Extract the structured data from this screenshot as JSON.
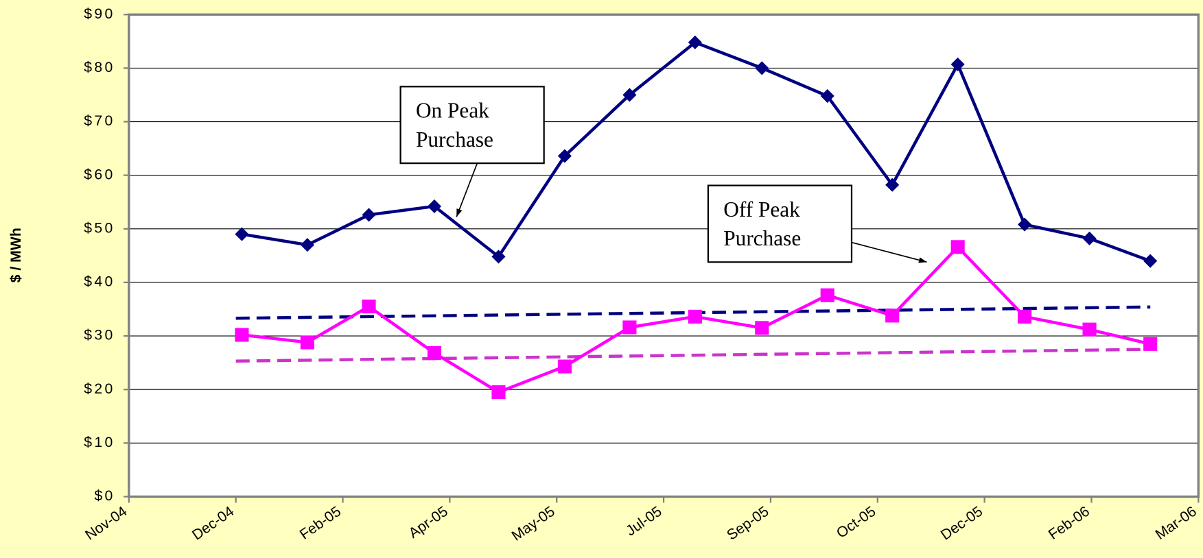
{
  "chart_data": {
    "type": "line",
    "y_label": "$ / MWh",
    "x": [
      1.69,
      2.67,
      3.59,
      4.57,
      5.53,
      6.52,
      7.49,
      8.47,
      9.47,
      10.45,
      11.42,
      12.4,
      13.4,
      14.37,
      15.28
    ],
    "series": [
      {
        "color": "#000080",
        "marker": "diamond",
        "values": [
          49,
          47,
          52.6,
          54.2,
          44.8,
          63.6,
          75,
          84.8,
          80,
          74.8,
          58.2,
          80.7,
          50.8,
          48.2,
          44
        ]
      },
      {
        "color": "#ff00ff",
        "marker": "square",
        "values": [
          30.2,
          28.8,
          35.5,
          26.8,
          19.5,
          24.3,
          31.6,
          33.6,
          31.5,
          37.6,
          33.8,
          46.6,
          33.6,
          31.2,
          28.5
        ]
      }
    ],
    "trendlines": [
      {
        "color": "#000080",
        "x": [
          1.6,
          15.28
        ],
        "values": [
          33.3,
          35.4
        ]
      },
      {
        "color": "#cc33cc",
        "x": [
          1.6,
          15.28
        ],
        "values": [
          25.3,
          27.5
        ]
      }
    ],
    "annotations": [
      {
        "lines": [
          "On Peak",
          "Purchase"
        ]
      },
      {
        "lines": [
          "Off Peak",
          "Purchase"
        ]
      }
    ],
    "xlim": [
      0,
      16
    ],
    "xticks": [
      {
        "value": 0,
        "label": "Nov-04"
      },
      {
        "value": 1.6,
        "label": "Dec-04"
      },
      {
        "value": 3.2,
        "label": "Feb-05"
      },
      {
        "value": 4.8,
        "label": "Apr-05"
      },
      {
        "value": 6.4,
        "label": "May-05"
      },
      {
        "value": 8,
        "label": "Jul-05"
      },
      {
        "value": 9.6,
        "label": "Sep-05"
      },
      {
        "value": 11.2,
        "label": "Oct-05"
      },
      {
        "value": 12.8,
        "label": "Dec-05"
      },
      {
        "value": 14.4,
        "label": "Feb-06"
      },
      {
        "value": 16,
        "label": "Mar-06"
      }
    ],
    "ylim": [
      0,
      90
    ],
    "yticks": [
      {
        "value": 0,
        "label": "$0"
      },
      {
        "value": 10,
        "label": "$10"
      },
      {
        "value": 20,
        "label": "$20"
      },
      {
        "value": 30,
        "label": "$30"
      },
      {
        "value": 40,
        "label": "$40"
      },
      {
        "value": 50,
        "label": "$50"
      },
      {
        "value": 60,
        "label": "$60"
      },
      {
        "value": 70,
        "label": "$70"
      },
      {
        "value": 80,
        "label": "$80"
      },
      {
        "value": 90,
        "label": "$90"
      }
    ],
    "grid": true
  }
}
